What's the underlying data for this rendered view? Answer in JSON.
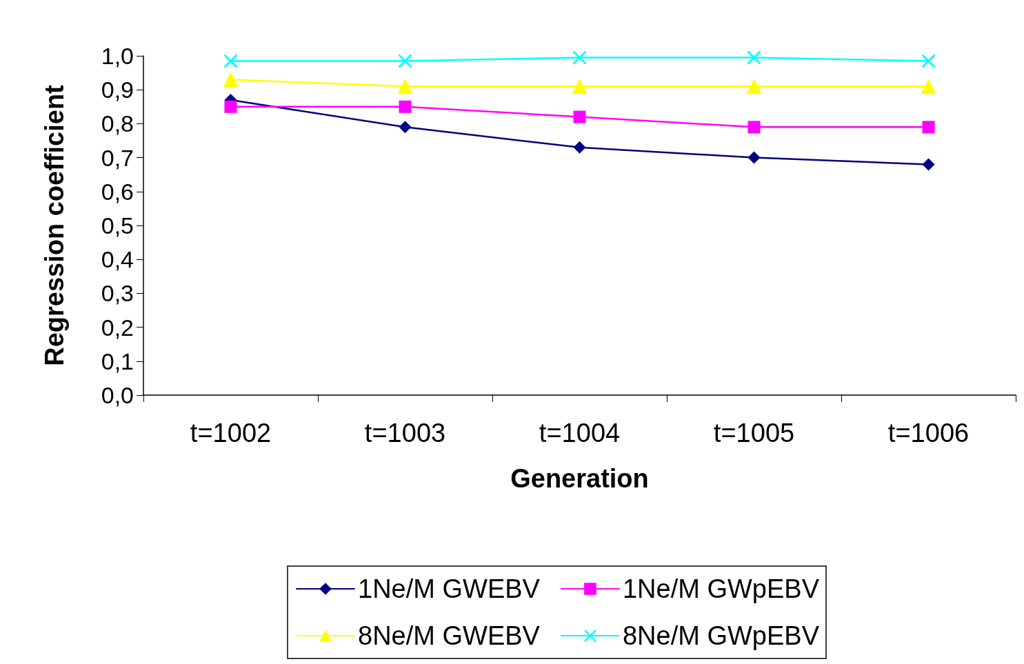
{
  "chart_data": {
    "type": "line",
    "xlabel": "Generation",
    "ylabel": "Regression coefficient",
    "categories": [
      "t=1002",
      "t=1003",
      "t=1004",
      "t=1005",
      "t=1006"
    ],
    "series": [
      {
        "name": "1Ne/M GWEBV",
        "color": "#000080",
        "marker": "diamond",
        "values": [
          0.87,
          0.79,
          0.73,
          0.7,
          0.68
        ]
      },
      {
        "name": "1Ne/M GWpEBV",
        "color": "#ff00ff",
        "marker": "square",
        "values": [
          0.85,
          0.85,
          0.82,
          0.79,
          0.79
        ]
      },
      {
        "name": "8Ne/M GWEBV",
        "color": "#ffff00",
        "marker": "triangle",
        "values": [
          0.93,
          0.91,
          0.91,
          0.91,
          0.91
        ]
      },
      {
        "name": "8Ne/M GWpEBV",
        "color": "#00ffff",
        "marker": "cross",
        "values": [
          0.985,
          0.985,
          0.995,
          0.995,
          0.985
        ]
      }
    ],
    "ylim": [
      0,
      1
    ],
    "yticks": [
      {
        "value": 0,
        "label": "0,0"
      },
      {
        "value": 0.1,
        "label": "0,1"
      },
      {
        "value": 0.2,
        "label": "0,2"
      },
      {
        "value": 0.3,
        "label": "0,3"
      },
      {
        "value": 0.4,
        "label": "0,4"
      },
      {
        "value": 0.5,
        "label": "0,5"
      },
      {
        "value": 0.6,
        "label": "0,6"
      },
      {
        "value": 0.7,
        "label": "0,7"
      },
      {
        "value": 0.8,
        "label": "0,8"
      },
      {
        "value": 0.9,
        "label": "0,9"
      },
      {
        "value": 1,
        "label": "1,0"
      }
    ],
    "grid": false,
    "legend": "bottom",
    "line_style": "solid"
  }
}
